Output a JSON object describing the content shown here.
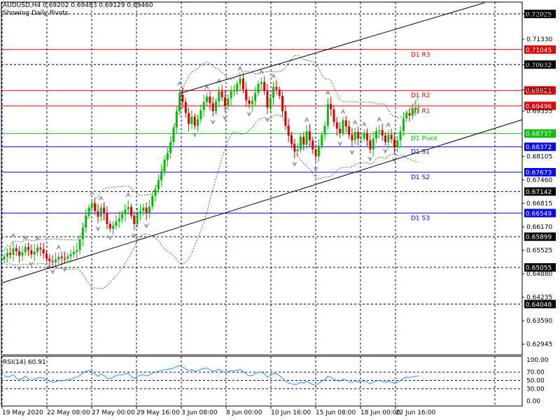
{
  "header": {
    "symbol_line": "AUDUSD,H4  0.69202 0.69483 0.69129 0.69460",
    "subtitle": "Showing Daily Pivots"
  },
  "colors": {
    "bull": "#00c000",
    "bear": "#e00000",
    "blue_line": "#0000ff",
    "red_line": "#e00000",
    "green_line": "#00c000",
    "grid": "#000080",
    "bands": "#006000",
    "rsi": "#1e90ff",
    "channel": "#000000"
  },
  "chart_data": {
    "type": "candlestick",
    "y_axis_ticks": [
      "0.72025",
      "0.71330",
      "0.70630",
      "0.69940",
      "0.69355",
      "0.68105",
      "0.67460",
      "0.66815",
      "0.66170",
      "0.65525",
      "0.64880",
      "0.64235",
      "0.63590",
      "0.62945"
    ],
    "ylim": [
      0.6265,
      0.7235
    ],
    "x_tick_labels": [
      "19 May 2020",
      "22 May 08:00",
      "27 May 00:00",
      "29 May 16:00",
      "3 Jun 08:00",
      "8 Jun 00:00",
      "10 Jun 16:00",
      "15 Jun 08:00",
      "18 Jun 00:00",
      "22 Jun 16:00"
    ],
    "price_boxes": [
      {
        "label": "0.72025",
        "value": 0.72025,
        "kind": "grid"
      },
      {
        "label": "0.71045",
        "value": 0.71045,
        "kind": "red"
      },
      {
        "label": "0.70632",
        "value": 0.70632,
        "kind": "grid"
      },
      {
        "label": "0.69921",
        "value": 0.69921,
        "kind": "red"
      },
      {
        "label": "0.69496",
        "value": 0.69496,
        "kind": "red"
      },
      {
        "label": "0.68737",
        "value": 0.68737,
        "kind": "green"
      },
      {
        "label": "0.68372",
        "value": 0.68372,
        "kind": "blue"
      },
      {
        "label": "0.67673",
        "value": 0.67673,
        "kind": "blue"
      },
      {
        "label": "0.67142",
        "value": 0.67142,
        "kind": "grid"
      },
      {
        "label": "0.66549",
        "value": 0.66549,
        "kind": "blue"
      },
      {
        "label": "0.65899",
        "value": 0.65899,
        "kind": "grid"
      },
      {
        "label": "0.65055",
        "value": 0.65055,
        "kind": "grid"
      },
      {
        "label": "0.64048",
        "value": 0.64048,
        "kind": "grid"
      }
    ],
    "pivots": [
      {
        "label": "D1 R3",
        "value": 0.71045,
        "color": "red"
      },
      {
        "label": "D1 R2",
        "value": 0.69921,
        "color": "red"
      },
      {
        "label": "D1 R1",
        "value": 0.69496,
        "color": "red"
      },
      {
        "label": "D1 Pivot",
        "value": 0.68737,
        "color": "green"
      },
      {
        "label": "D1 S1",
        "value": 0.68372,
        "color": "blue"
      },
      {
        "label": "D1 S2",
        "value": 0.67673,
        "color": "blue"
      },
      {
        "label": "D1 S3",
        "value": 0.66549,
        "color": "blue"
      }
    ],
    "close_series": [
      0.6535,
      0.6545,
      0.654,
      0.6558,
      0.655,
      0.6538,
      0.6547,
      0.6562,
      0.6553,
      0.6541,
      0.6549,
      0.656,
      0.6556,
      0.6544,
      0.653,
      0.6523,
      0.652,
      0.6527,
      0.6535,
      0.6531,
      0.653,
      0.6536,
      0.6542,
      0.6548,
      0.6553,
      0.6583,
      0.6615,
      0.6648,
      0.667,
      0.6682,
      0.666,
      0.6645,
      0.667,
      0.6655,
      0.6625,
      0.6612,
      0.662,
      0.6632,
      0.664,
      0.6651,
      0.6665,
      0.6672,
      0.6648,
      0.6625,
      0.6653,
      0.666,
      0.667,
      0.6655,
      0.6673,
      0.6702,
      0.672,
      0.6745,
      0.677,
      0.6802,
      0.682,
      0.685,
      0.689,
      0.6935,
      0.698,
      0.696,
      0.693,
      0.69,
      0.692,
      0.6895,
      0.6913,
      0.6938,
      0.696,
      0.6975,
      0.6957,
      0.6935,
      0.6962,
      0.699,
      0.6973,
      0.695,
      0.697,
      0.699,
      0.699,
      0.701,
      0.7025,
      0.6995,
      0.6965,
      0.6955,
      0.6963,
      0.6985,
      0.701,
      0.7015,
      0.699,
      0.6945,
      0.6972,
      0.7002,
      0.6995,
      0.6977,
      0.6935,
      0.6895,
      0.6868,
      0.6845,
      0.6825,
      0.683,
      0.6865,
      0.6843,
      0.688,
      0.6855,
      0.683,
      0.6811,
      0.684,
      0.687,
      0.6895,
      0.6955,
      0.694,
      0.6905,
      0.6887,
      0.6875,
      0.691,
      0.6893,
      0.687,
      0.6855,
      0.6878,
      0.686,
      0.686,
      0.6875,
      0.6855,
      0.683,
      0.686,
      0.688,
      0.6883,
      0.6868,
      0.685,
      0.687,
      0.6858,
      0.6835,
      0.6855,
      0.688,
      0.6915,
      0.693,
      0.6923,
      0.694,
      0.6945,
      0.6946
    ],
    "rsi": {
      "label": "RSI(14) 60.91",
      "ticks": [
        "100.00",
        "70.00",
        "50.00",
        "30.00",
        "0.00"
      ],
      "values": [
        62,
        58,
        60,
        64,
        56,
        52,
        55,
        60,
        54,
        50,
        53,
        56,
        57,
        55,
        52,
        48,
        45,
        47,
        50,
        49,
        50,
        52,
        53,
        56,
        58,
        62,
        68,
        72,
        74,
        71,
        65,
        60,
        66,
        62,
        56,
        54,
        58,
        62,
        64,
        63,
        66,
        67,
        60,
        55,
        60,
        62,
        64,
        61,
        63,
        68,
        70,
        72,
        74,
        76,
        77,
        78,
        80,
        84,
        86,
        82,
        78,
        74,
        76,
        72,
        74,
        77,
        79,
        80,
        76,
        72,
        74,
        77,
        73,
        69,
        71,
        74,
        73,
        75,
        77,
        71,
        66,
        61,
        62,
        66,
        70,
        71,
        66,
        58,
        62,
        67,
        66,
        62,
        55,
        48,
        44,
        42,
        40,
        41,
        46,
        43,
        48,
        44,
        40,
        38,
        43,
        48,
        52,
        60,
        58,
        53,
        50,
        48,
        53,
        51,
        47,
        45,
        49,
        46,
        46,
        49,
        46,
        42,
        46,
        49,
        50,
        48,
        45,
        48,
        46,
        43,
        46,
        50,
        55,
        58,
        57,
        59,
        60,
        61
      ]
    }
  }
}
